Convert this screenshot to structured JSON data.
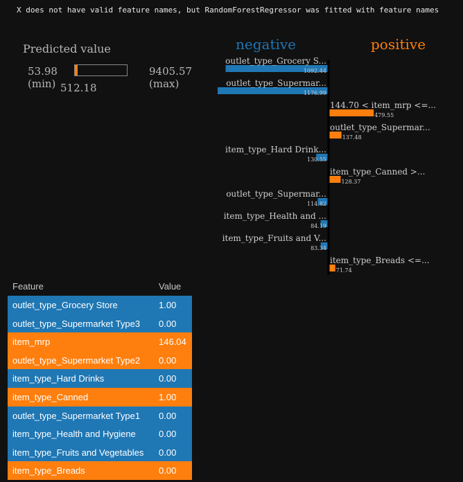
{
  "warning": "X does not have valid feature names, but RandomForestRegressor was fitted with feature names",
  "predicted": {
    "title": "Predicted value",
    "min_value": "53.98",
    "min_label": "(min)",
    "max_value": "9405.57",
    "max_label": "(max)",
    "value": "512.18",
    "min": 53.98,
    "max": 9405.57,
    "prediction": 512.18,
    "fill_color": "#ff7f0e"
  },
  "headers": {
    "negative": "negative",
    "positive": "positive"
  },
  "colors": {
    "negative": "#1f77b4",
    "positive": "#ff7f0e",
    "background": "#111111"
  },
  "chart_data": {
    "type": "bar",
    "orientation": "horizontal",
    "diverging": true,
    "title": "",
    "items": [
      {
        "label": "outlet_type_Grocery S...",
        "value": -1092.44,
        "value_label": "1092.44",
        "side": "negative"
      },
      {
        "label": "outlet_type_Supermar...",
        "value": -1176.99,
        "value_label": "1176.99",
        "side": "negative"
      },
      {
        "label": "144.70 < item_mrp <=...",
        "value": 479.55,
        "value_label": "479.55",
        "side": "positive"
      },
      {
        "label": "outlet_type_Supermar...",
        "value": 137.48,
        "value_label": "137.48",
        "side": "positive"
      },
      {
        "label": "item_type_Hard Drink...",
        "value": -130.55,
        "value_label": "130.55",
        "side": "negative"
      },
      {
        "label": "item_type_Canned >...",
        "value": 128.37,
        "value_label": "128.37",
        "side": "positive"
      },
      {
        "label": "outlet_type_Supermar...",
        "value": -114.82,
        "value_label": "114.82",
        "side": "negative"
      },
      {
        "label": "item_type_Health and ...",
        "value": -84.19,
        "value_label": "84.19",
        "side": "negative"
      },
      {
        "label": "item_type_Fruits and V...",
        "value": -83.34,
        "value_label": "83.34",
        "side": "negative"
      },
      {
        "label": "item_type_Breads <=...",
        "value": 71.74,
        "value_label": "71.74",
        "side": "positive"
      }
    ]
  },
  "table": {
    "headers": [
      "Feature",
      "Value"
    ],
    "rows": [
      {
        "feature": "outlet_type_Grocery Store",
        "value": "1.00",
        "side": "negative"
      },
      {
        "feature": "outlet_type_Supermarket Type3",
        "value": "0.00",
        "side": "negative"
      },
      {
        "feature": "item_mrp",
        "value": "146.04",
        "side": "positive"
      },
      {
        "feature": "outlet_type_Supermarket Type2",
        "value": "0.00",
        "side": "positive"
      },
      {
        "feature": "item_type_Hard Drinks",
        "value": "0.00",
        "side": "negative"
      },
      {
        "feature": "item_type_Canned",
        "value": "1.00",
        "side": "positive"
      },
      {
        "feature": "outlet_type_Supermarket Type1",
        "value": "0.00",
        "side": "negative"
      },
      {
        "feature": "item_type_Health and Hygiene",
        "value": "0.00",
        "side": "negative"
      },
      {
        "feature": "item_type_Fruits and Vegetables",
        "value": "0.00",
        "side": "negative"
      },
      {
        "feature": "item_type_Breads",
        "value": "0.00",
        "side": "positive"
      }
    ]
  }
}
